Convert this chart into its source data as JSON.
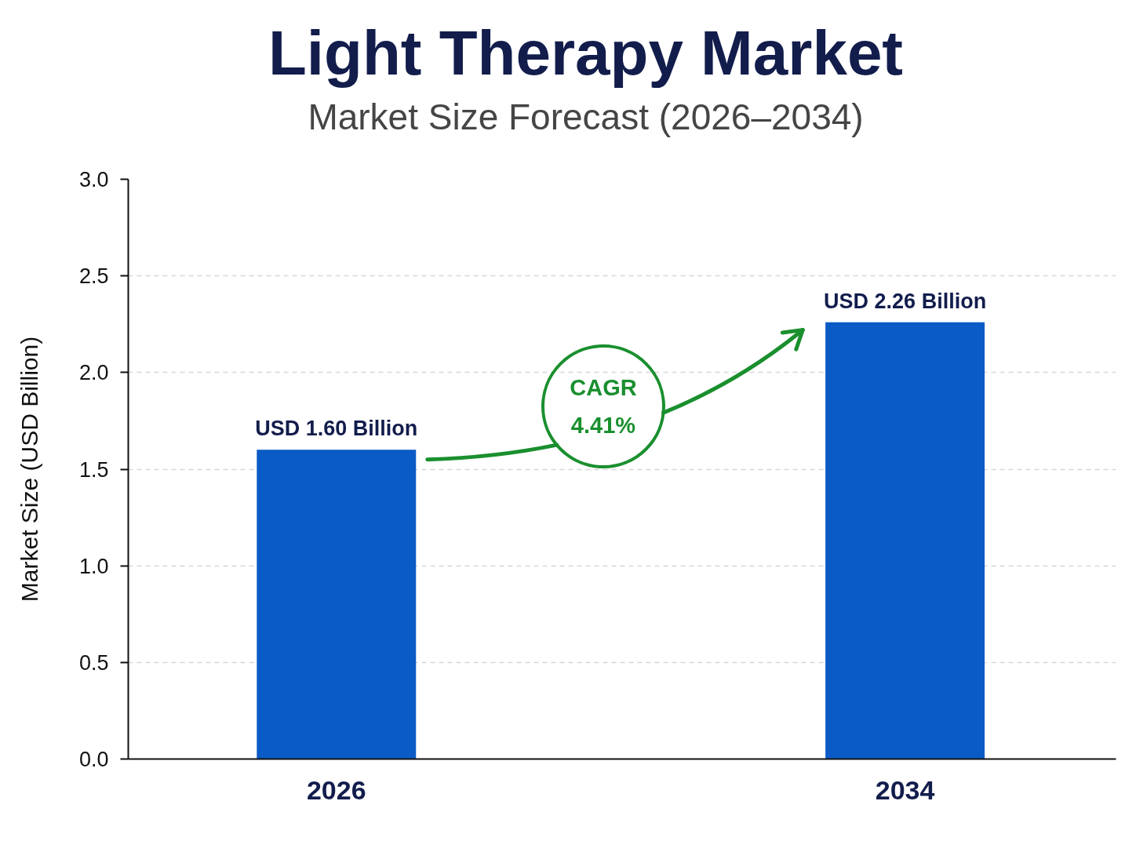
{
  "chart_data": {
    "type": "bar",
    "title": "Light Therapy Market",
    "subtitle": "Market Size Forecast (2026–2034)",
    "ylabel": "Market Size (USD Billion)",
    "categories": [
      "2026",
      "2034"
    ],
    "values": [
      1.6,
      2.26
    ],
    "value_labels": [
      "USD 1.60 Billion",
      "USD 2.26 Billion"
    ],
    "color": "#0b5bc6",
    "ylim": [
      0,
      3
    ],
    "yticks": [
      {
        "value": 0,
        "label": "0.0"
      },
      0.5,
      {
        "value": 1,
        "label": "1.0"
      },
      1.5,
      {
        "value": 2,
        "label": "2.0"
      },
      2.5,
      {
        "value": 3,
        "label": "3.0"
      }
    ],
    "grid": "y",
    "annotations": [
      "CAGR 4.41%"
    ]
  }
}
